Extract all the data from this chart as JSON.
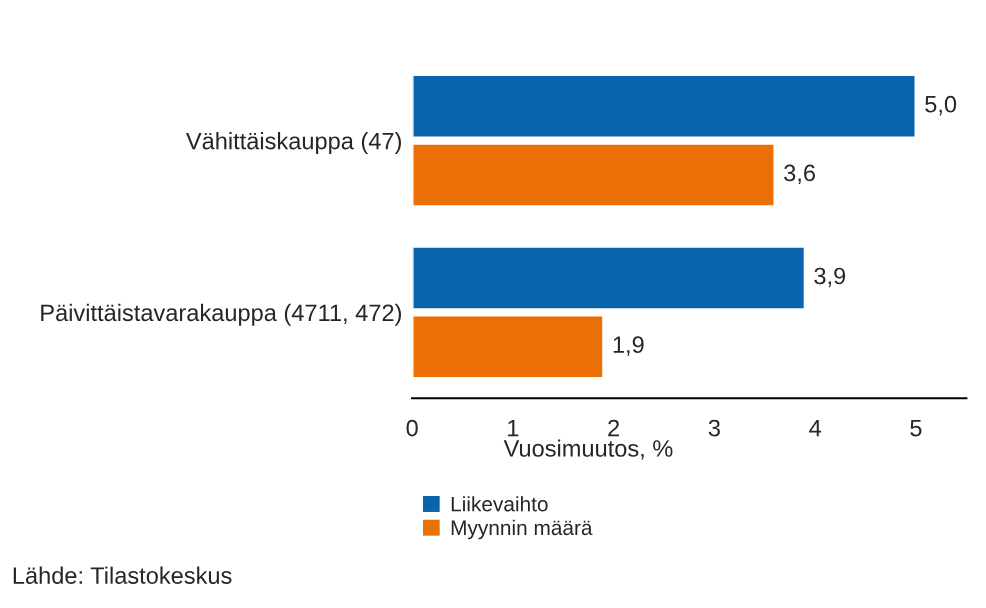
{
  "chart_data": {
    "type": "bar",
    "orientation": "horizontal",
    "categories": [
      "Vähittäiskauppa (47)",
      "Päivittäistavarakauppa (4711, 472)"
    ],
    "series": [
      {
        "name": "Liikevaihto",
        "color": "#0a64ad",
        "values": [
          5.0,
          3.9
        ],
        "value_labels": [
          "5,0",
          "3,9"
        ]
      },
      {
        "name": "Myynnin määrä",
        "color": "#ec6f06",
        "values": [
          3.6,
          1.9
        ],
        "value_labels": [
          "3,6",
          "1,9"
        ]
      }
    ],
    "xlim": [
      0,
      5.5
    ],
    "xticks": [
      0,
      1,
      2,
      3,
      4,
      5
    ],
    "xlabel": "Vuosimuutos, %",
    "legend": "bottom",
    "grid": false,
    "annotations": [
      "Lähde: Tilastokeskus"
    ]
  }
}
